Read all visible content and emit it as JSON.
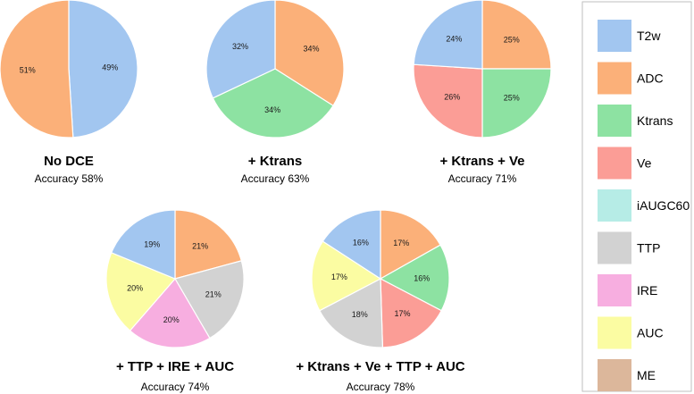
{
  "legend": {
    "items": [
      {
        "label": "T2w",
        "color": "#a2c6f0"
      },
      {
        "label": "ADC",
        "color": "#fbb079"
      },
      {
        "label": "Ktrans",
        "color": "#8de2a2"
      },
      {
        "label": "Ve",
        "color": "#fb9d96"
      },
      {
        "label": "iAUGC60",
        "color": "#b6ece6"
      },
      {
        "label": "TTP",
        "color": "#d2d2d2"
      },
      {
        "label": "IRE",
        "color": "#f7aee0"
      },
      {
        "label": "AUC",
        "color": "#fbfca2"
      },
      {
        "label": "ME",
        "color": "#dcb79b"
      }
    ]
  },
  "chart_data": [
    {
      "type": "pie",
      "title": "No DCE",
      "subtitle": "Accuracy 58%",
      "slices": [
        {
          "label": "T2w",
          "value": 49,
          "text": "49%"
        },
        {
          "label": "ADC",
          "value": 51,
          "text": "51%"
        }
      ]
    },
    {
      "type": "pie",
      "title": "+ Ktrans",
      "subtitle": "Accuracy 63%",
      "slices": [
        {
          "label": "ADC",
          "value": 34,
          "text": "34%"
        },
        {
          "label": "Ktrans",
          "value": 34,
          "text": "34%"
        },
        {
          "label": "T2w",
          "value": 32,
          "text": "32%"
        }
      ]
    },
    {
      "type": "pie",
      "title": "+ Ktrans + Ve",
      "subtitle": "Accuracy 71%",
      "slices": [
        {
          "label": "ADC",
          "value": 25,
          "text": "25%"
        },
        {
          "label": "Ktrans",
          "value": 25,
          "text": "25%"
        },
        {
          "label": "Ve",
          "value": 26,
          "text": "26%"
        },
        {
          "label": "T2w",
          "value": 24,
          "text": "24%"
        }
      ]
    },
    {
      "type": "pie",
      "title": "+ TTP + IRE + AUC",
      "subtitle": "Accuracy 74%",
      "slices": [
        {
          "label": "ADC",
          "value": 21,
          "text": "21%"
        },
        {
          "label": "TTP",
          "value": 21,
          "text": "21%"
        },
        {
          "label": "IRE",
          "value": 20,
          "text": "20%"
        },
        {
          "label": "AUC",
          "value": 20,
          "text": "20%"
        },
        {
          "label": "T2w",
          "value": 19,
          "text": "19%"
        }
      ]
    },
    {
      "type": "pie",
      "title": "+ Ktrans + Ve + TTP + AUC",
      "subtitle": "Accuracy 78%",
      "slices": [
        {
          "label": "ADC",
          "value": 17,
          "text": "17%"
        },
        {
          "label": "Ktrans",
          "value": 16,
          "text": "16%"
        },
        {
          "label": "Ve",
          "value": 17,
          "text": "17%"
        },
        {
          "label": "TTP",
          "value": 18,
          "text": "18%"
        },
        {
          "label": "AUC",
          "value": 17,
          "text": "17%"
        },
        {
          "label": "T2w",
          "value": 16,
          "text": "16%"
        }
      ]
    }
  ]
}
